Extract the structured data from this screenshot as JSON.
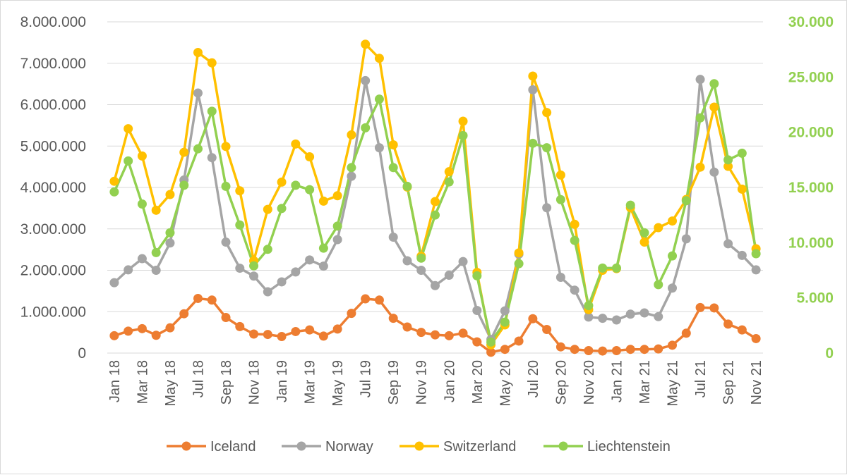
{
  "chart_data": {
    "type": "line",
    "title": "",
    "xlabel": "",
    "ylabel": "",
    "x": [
      "Jan 18",
      "Feb 18",
      "Mar 18",
      "Apr 18",
      "May 18",
      "Jun 18",
      "Jul 18",
      "Aug 18",
      "Sep 18",
      "Oct 18",
      "Nov 18",
      "Dec 18",
      "Jan 19",
      "Feb 19",
      "Mar 19",
      "Apr 19",
      "May 19",
      "Jun 19",
      "Jul 19",
      "Aug 19",
      "Sep 19",
      "Oct 19",
      "Nov 19",
      "Dec 19",
      "Jan 20",
      "Feb 20",
      "Mar 20",
      "Apr 20",
      "May 20",
      "Jun 20",
      "Jul 20",
      "Aug 20",
      "Sep 20",
      "Oct 20",
      "Nov 20",
      "Dec 20",
      "Jan 21",
      "Feb 21",
      "Mar 21",
      "Apr 21",
      "May 21",
      "Jun 21",
      "Jul 21",
      "Aug 21",
      "Sep 21",
      "Oct 21",
      "Nov 21"
    ],
    "x_tick_labels": [
      "Jan 18",
      "Mar 18",
      "May 18",
      "Jul 18",
      "Sep 18",
      "Nov 18",
      "Jan 19",
      "Mar 19",
      "May 19",
      "Jul 19",
      "Sep 19",
      "Nov 19",
      "Jan 20",
      "Mar 20",
      "May 20",
      "Jul 20",
      "Sep 20",
      "Nov 20",
      "Jan 21",
      "Mar 21",
      "May 21",
      "Jul 21",
      "Sep 21",
      "Nov 21"
    ],
    "y_left": {
      "lim": [
        0,
        8000000
      ],
      "ticks": [
        0,
        1000000,
        2000000,
        3000000,
        4000000,
        5000000,
        6000000,
        7000000,
        8000000
      ],
      "tick_labels": [
        "0",
        "1.000.000",
        "2.000.000",
        "3.000.000",
        "4.000.000",
        "5.000.000",
        "6.000.000",
        "7.000.000",
        "8.000.000"
      ]
    },
    "y_right": {
      "lim": [
        0,
        30000
      ],
      "ticks": [
        0,
        5000,
        10000,
        15000,
        20000,
        25000,
        30000
      ],
      "tick_labels": [
        "0",
        "5.000",
        "10.000",
        "15.000",
        "20.000",
        "25.000",
        "30.000"
      ]
    },
    "grid": true,
    "legend_position": "bottom",
    "series": [
      {
        "name": "Iceland",
        "axis": "left",
        "color": "#ed7d31",
        "values": [
          420000,
          530000,
          590000,
          430000,
          610000,
          950000,
          1320000,
          1280000,
          860000,
          640000,
          460000,
          450000,
          400000,
          520000,
          560000,
          410000,
          580000,
          960000,
          1310000,
          1280000,
          840000,
          630000,
          500000,
          440000,
          420000,
          480000,
          270000,
          20000,
          90000,
          290000,
          830000,
          570000,
          150000,
          90000,
          60000,
          50000,
          60000,
          90000,
          90000,
          100000,
          190000,
          480000,
          1100000,
          1090000,
          700000,
          560000,
          350000
        ]
      },
      {
        "name": "Norway",
        "axis": "left",
        "color": "#a5a5a5",
        "values": [
          1700000,
          2010000,
          2280000,
          2000000,
          2660000,
          4180000,
          6280000,
          4720000,
          2680000,
          2050000,
          1860000,
          1480000,
          1720000,
          1960000,
          2250000,
          2100000,
          2740000,
          4270000,
          6580000,
          4960000,
          2800000,
          2230000,
          2000000,
          1630000,
          1880000,
          2210000,
          1030000,
          330000,
          1020000,
          2390000,
          6360000,
          3510000,
          1830000,
          1520000,
          870000,
          840000,
          800000,
          940000,
          970000,
          880000,
          1570000,
          2760000,
          6610000,
          4370000,
          2640000,
          2360000,
          2010000
        ]
      },
      {
        "name": "Switzerland",
        "axis": "left",
        "color": "#ffc000",
        "values": [
          4150000,
          5420000,
          4760000,
          3450000,
          3830000,
          4850000,
          7260000,
          7010000,
          4990000,
          3920000,
          2230000,
          3470000,
          4130000,
          5050000,
          4740000,
          3670000,
          3800000,
          5270000,
          7460000,
          7120000,
          5030000,
          4010000,
          2340000,
          3660000,
          4380000,
          5600000,
          1950000,
          200000,
          680000,
          2420000,
          6690000,
          5810000,
          4300000,
          3110000,
          1050000,
          2000000,
          2040000,
          3510000,
          2680000,
          3030000,
          3190000,
          3710000,
          4490000,
          5940000,
          4510000,
          3960000,
          2520000
        ]
      },
      {
        "name": "Liechtenstein",
        "axis": "right",
        "color": "#92d050",
        "values": [
          14600,
          17400,
          13500,
          9100,
          10900,
          15200,
          18500,
          21900,
          15100,
          11600,
          7900,
          9400,
          13100,
          15200,
          14800,
          9500,
          11500,
          16800,
          20400,
          23000,
          16800,
          15100,
          8600,
          12500,
          15500,
          19700,
          7000,
          1000,
          2800,
          8100,
          19000,
          18600,
          13900,
          10200,
          4300,
          7700,
          7700,
          13400,
          10900,
          6200,
          8800,
          13800,
          21300,
          24400,
          17500,
          18100,
          9000
        ]
      }
    ]
  }
}
